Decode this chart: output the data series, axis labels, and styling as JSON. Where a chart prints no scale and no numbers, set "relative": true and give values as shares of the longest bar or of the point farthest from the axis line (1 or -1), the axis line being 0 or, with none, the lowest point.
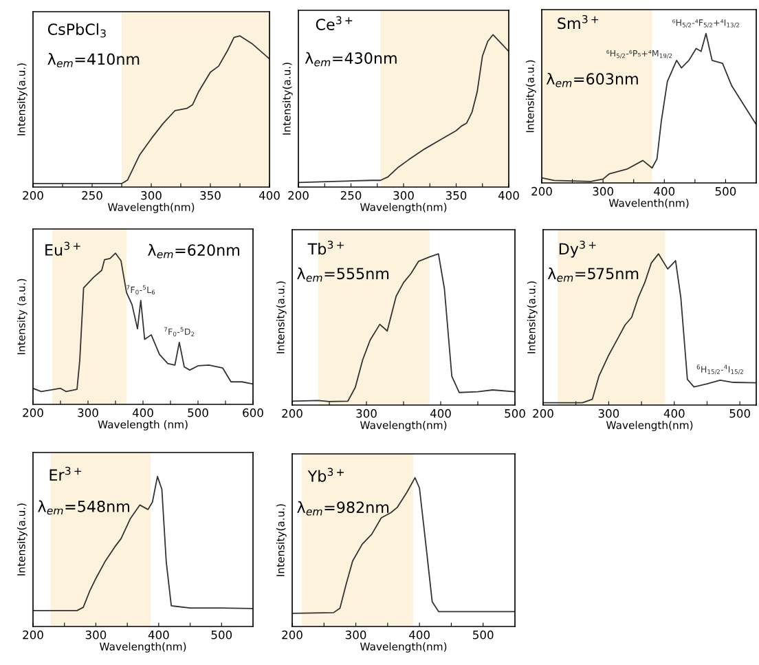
{
  "chart_data": [
    {
      "type": "line",
      "title": "CsPbCl$_{3}$",
      "subtitle": "λ$_{em}$=410nm",
      "xlabel": "Wavelength(nm)",
      "ylabel": "Intensity(a.u.)",
      "relative": true,
      "tick_labels": "x",
      "xlim": [
        200,
        400
      ],
      "xticks": [
        200,
        {
          "value": 225,
          "label": null
        },
        250,
        {
          "value": 275,
          "label": null
        },
        300,
        {
          "value": 325,
          "label": null
        },
        350,
        {
          "value": 375,
          "label": null
        },
        400
      ],
      "bands": [
        {
          "axis": "x",
          "from": 275,
          "to": 400,
          "color": "#fdf3dc"
        }
      ],
      "x": [
        200,
        275,
        280,
        290,
        300,
        310,
        320,
        330,
        335,
        340,
        350,
        357,
        365,
        370,
        375,
        385,
        400
      ],
      "series": [
        {
          "color": "#333333",
          "values": [
            0.023,
            0.023,
            0.047,
            0.21,
            0.32,
            0.42,
            0.505,
            0.52,
            0.545,
            0.63,
            0.76,
            0.8,
            0.91,
            0.99,
            1,
            0.95,
            0.848
          ]
        }
      ]
    },
    {
      "type": "line",
      "title": "Ce$^{3+}$",
      "subtitle": "λ$_{em}$=430nm",
      "xlabel": "Wavelength(nm)",
      "ylabel": "Intensity(a.u.)",
      "relative": true,
      "tick_labels": "x",
      "xlim": [
        200,
        400
      ],
      "xticks": [
        200,
        {
          "value": 225,
          "label": null
        },
        250,
        {
          "value": 275,
          "label": null
        },
        300,
        {
          "value": 325,
          "label": null
        },
        350,
        {
          "value": 375,
          "label": null
        },
        400
      ],
      "bands": [
        {
          "axis": "x",
          "from": 278,
          "to": 400,
          "color": "#fdf3dc"
        }
      ],
      "x": [
        200,
        270,
        278,
        285,
        295,
        305,
        320,
        335,
        350,
        355,
        360,
        365,
        370,
        375,
        380,
        385,
        400
      ],
      "series": [
        {
          "color": "#333333",
          "values": [
            0.03,
            0.044,
            0.044,
            0.066,
            0.13,
            0.18,
            0.25,
            0.31,
            0.37,
            0.4,
            0.42,
            0.49,
            0.625,
            0.86,
            0.956,
            1,
            0.89
          ]
        }
      ]
    },
    {
      "type": "line",
      "title": "Sm$^{3+}$",
      "subtitle": "λ$_{em}$=603nm",
      "xlabel": "Wavelenth(nm)",
      "ylabel": "Intensity(a.u.)",
      "relative": true,
      "tick_labels": "x",
      "xlim": [
        200,
        550
      ],
      "xticks": [
        200,
        {
          "value": 250,
          "label": null
        },
        300,
        {
          "value": 350,
          "label": null
        },
        400,
        {
          "value": 450,
          "label": null
        },
        500
      ],
      "bands": [
        {
          "axis": "x",
          "from": 200,
          "to": 380,
          "color": "#fdf3dc"
        }
      ],
      "annotations": [
        {
          "text": "⁶H$_{5/2}$-⁶P₅+⁴M$_{19/2}$",
          "x": 420,
          "y": 0.82
        },
        {
          "text": "⁶H$_{5/2}$-⁴F$_{5/2}$+⁴I$_{13/2}$",
          "x": 468,
          "y": 1
        }
      ],
      "x": [
        200,
        220,
        280,
        300,
        310,
        340,
        365,
        380,
        388,
        395,
        405,
        420,
        428,
        440,
        452,
        460,
        468,
        478,
        495,
        510,
        530,
        550
      ],
      "series": [
        {
          "color": "#333333",
          "values": [
            0.034,
            0.017,
            0.01,
            0.026,
            0.06,
            0.094,
            0.15,
            0.1,
            0.16,
            0.41,
            0.68,
            0.82,
            0.77,
            0.82,
            0.9,
            0.88,
            1,
            0.82,
            0.8,
            0.65,
            0.52,
            0.39
          ]
        }
      ]
    },
    {
      "type": "line",
      "title": "Eu$^{3+}$",
      "subtitle": "λ$_{em}$=620nm",
      "xlabel": "Wavelength (nm)",
      "ylabel": "Intensity (a.u.)",
      "relative": true,
      "tick_labels": "x",
      "xlim": [
        200,
        600
      ],
      "xticks": [
        200,
        {
          "value": 250,
          "label": null
        },
        300,
        {
          "value": 350,
          "label": null
        },
        400,
        {
          "value": 450,
          "label": null
        },
        500,
        {
          "value": 550,
          "label": null
        },
        600
      ],
      "bands": [
        {
          "axis": "x",
          "from": 235,
          "to": 370,
          "color": "#fdf3dc"
        }
      ],
      "annotations": [
        {
          "text": "$^{7}$F$_{0}$-$^{5}$L$_{6}$",
          "x": 396,
          "y": 0.687
        },
        {
          "text": "$^{7}$F$_{0}$-$^{5}$D$_{2}$",
          "x": 466,
          "y": 0.41
        }
      ],
      "x": [
        200,
        215,
        250,
        260,
        280,
        285,
        292,
        310,
        325,
        330,
        340,
        350,
        360,
        370,
        380,
        390,
        396,
        403,
        415,
        430,
        445,
        458,
        466,
        475,
        485,
        500,
        520,
        545,
        560,
        580,
        600
      ],
      "series": [
        {
          "color": "#333333",
          "values": [
            0.106,
            0.085,
            0.106,
            0.085,
            0.099,
            0.29,
            0.77,
            0.84,
            0.887,
            0.957,
            0.965,
            1,
            0.95,
            0.74,
            0.66,
            0.5,
            0.687,
            0.43,
            0.46,
            0.33,
            0.27,
            0.26,
            0.41,
            0.248,
            0.227,
            0.255,
            0.26,
            0.24,
            0.149,
            0.149,
            0.135
          ]
        }
      ]
    },
    {
      "type": "line",
      "title": "Tb$^{3+}$",
      "subtitle": "λ$_{em}$=555nm",
      "xlabel": "Wavelength(nm)",
      "ylabel": "Intensity(a.u.)",
      "relative": true,
      "tick_labels": "x",
      "xlim": [
        200,
        500
      ],
      "xticks": [
        200,
        {
          "value": 250,
          "label": null
        },
        300,
        {
          "value": 350,
          "label": null
        },
        400,
        {
          "value": 450,
          "label": null
        },
        500
      ],
      "bands": [
        {
          "axis": "x",
          "from": 235,
          "to": 385,
          "color": "#fdf3dc"
        }
      ],
      "x": [
        200,
        235,
        250,
        275,
        285,
        295,
        305,
        318,
        328,
        340,
        350,
        360,
        370,
        385,
        397,
        405,
        415,
        425,
        450,
        470,
        500
      ],
      "series": [
        {
          "color": "#333333",
          "values": [
            0.026,
            0.03,
            0.023,
            0.026,
            0.117,
            0.3,
            0.43,
            0.534,
            0.49,
            0.72,
            0.81,
            0.87,
            0.95,
            0.98,
            1,
            0.77,
            0.19,
            0.083,
            0.088,
            0.1,
            0.088
          ]
        }
      ]
    },
    {
      "type": "line",
      "title": "Dy$^{3+}$",
      "subtitle": "λ$_{em}$=575nm",
      "xlabel": "Wavelength(nm)",
      "ylabel": "Intensity(a.u.)",
      "relative": true,
      "tick_labels": "x",
      "xlim": [
        200,
        525
      ],
      "xticks": [
        200,
        {
          "value": 250,
          "label": null
        },
        300,
        {
          "value": 350,
          "label": null
        },
        400,
        {
          "value": 450,
          "label": null
        },
        500
      ],
      "bands": [
        {
          "axis": "x",
          "from": 222,
          "to": 386,
          "color": "#fdf3dc"
        }
      ],
      "annotations": [
        {
          "text": "$^{6}$H$_{15/2}$-$^{4}$I$_{15/2}$",
          "x": 470,
          "y": 0.164
        }
      ],
      "x": [
        200,
        260,
        275,
        285,
        300,
        315,
        325,
        335,
        345,
        355,
        365,
        376,
        390,
        402,
        410,
        420,
        430,
        450,
        470,
        490,
        525
      ],
      "series": [
        {
          "color": "#333333",
          "values": [
            0.015,
            0.015,
            0.038,
            0.19,
            0.33,
            0.45,
            0.53,
            0.58,
            0.71,
            0.81,
            0.94,
            1,
            0.9,
            0.955,
            0.71,
            0.17,
            0.12,
            0.14,
            0.164,
            0.15,
            0.147
          ]
        }
      ]
    },
    {
      "type": "line",
      "title": "Er$^{3+}$",
      "subtitle": "λ$_{em}$=548nm",
      "xlabel": "Wavelength(nm)",
      "ylabel": "Intensity(a.u.)",
      "relative": true,
      "tick_labels": "x",
      "xlim": [
        200,
        550
      ],
      "xticks": [
        200,
        {
          "value": 250,
          "label": null
        },
        300,
        {
          "value": 350,
          "label": null
        },
        400,
        {
          "value": 450,
          "label": null
        },
        500
      ],
      "bands": [
        {
          "axis": "x",
          "from": 228,
          "to": 387,
          "color": "#fdf3dc"
        }
      ],
      "x": [
        200,
        270,
        280,
        290,
        300,
        315,
        330,
        340,
        355,
        370,
        383,
        390,
        398,
        405,
        412,
        420,
        450,
        500,
        550
      ],
      "series": [
        {
          "color": "#333333",
          "values": [
            0.106,
            0.106,
            0.128,
            0.234,
            0.32,
            0.436,
            0.53,
            0.585,
            0.72,
            0.81,
            0.78,
            0.83,
            1,
            0.915,
            0.43,
            0.138,
            0.123,
            0.123,
            0.12
          ]
        }
      ]
    },
    {
      "type": "line",
      "title": "Yb$^{3+}$",
      "subtitle": "λ$_{em}$=982nm",
      "xlabel": "Wavelength(nm)",
      "ylabel": "Intensity(a.u.)",
      "relative": true,
      "tick_labels": "x",
      "xlim": [
        200,
        550
      ],
      "xticks": [
        200,
        {
          "value": 250,
          "label": null
        },
        300,
        {
          "value": 350,
          "label": null
        },
        400,
        {
          "value": 450,
          "label": null
        },
        500
      ],
      "bands": [
        {
          "axis": "x",
          "from": 215,
          "to": 390,
          "color": "#fdf3dc"
        }
      ],
      "x": [
        200,
        265,
        275,
        285,
        295,
        310,
        325,
        340,
        355,
        365,
        380,
        393,
        400,
        410,
        420,
        430,
        550
      ],
      "series": [
        {
          "color": "#333333",
          "values": [
            0.088,
            0.093,
            0.122,
            0.288,
            0.44,
            0.553,
            0.62,
            0.73,
            0.765,
            0.8,
            0.9,
            1,
            0.93,
            0.553,
            0.166,
            0.1,
            0.1
          ]
        }
      ]
    }
  ]
}
